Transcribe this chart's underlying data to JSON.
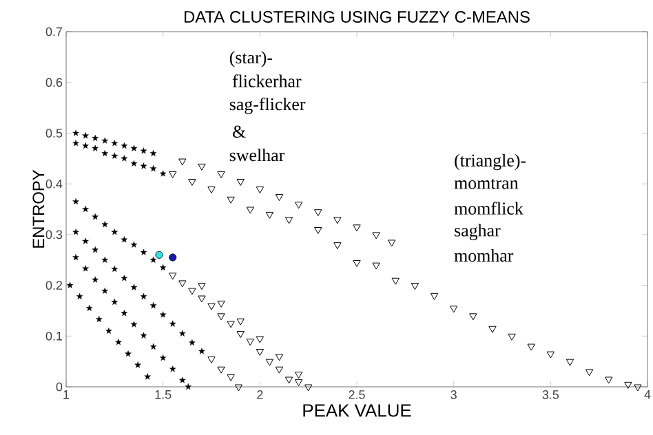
{
  "chart_data": {
    "type": "scatter",
    "title": "DATA CLUSTERING USING FUZZY C-MEANS",
    "xlabel": "PEAK VALUE",
    "ylabel": "ENTROPY",
    "xlim": [
      1,
      4
    ],
    "xticks": [
      1,
      1.5,
      2,
      2.5,
      3,
      3.5,
      4
    ],
    "ylim": [
      0,
      0.7
    ],
    "yticks": [
      0,
      0.1,
      0.2,
      0.3,
      0.4,
      0.5,
      0.6,
      0.7
    ],
    "grid": false,
    "annotations": [
      "(star)-",
      "flickerhar",
      "sag-flicker",
      "&",
      "swelhar",
      "(triangle)-",
      "momtran",
      "momflick",
      "saghar",
      "momhar"
    ],
    "series": [
      {
        "color": "#000000",
        "marker": "star",
        "x": [
          1.05,
          1.1,
          1.15,
          1.2,
          1.25,
          1.3,
          1.35,
          1.4,
          1.45,
          1.05,
          1.1,
          1.15,
          1.2,
          1.25,
          1.3,
          1.35,
          1.4,
          1.45,
          1.5,
          1.05,
          1.1,
          1.15,
          1.2,
          1.25,
          1.3,
          1.35,
          1.4,
          1.45,
          1.5,
          1.05,
          1.1,
          1.15,
          1.2,
          1.25,
          1.3,
          1.35,
          1.4,
          1.45,
          1.5,
          1.55,
          1.6,
          1.65,
          1.7,
          1.05,
          1.1,
          1.15,
          1.2,
          1.25,
          1.3,
          1.35,
          1.4,
          1.45,
          1.5,
          1.55,
          1.6,
          1.63,
          1.02,
          1.07,
          1.12,
          1.17,
          1.22,
          1.27,
          1.32,
          1.37,
          1.42
        ],
        "values": [
          0.5,
          0.495,
          0.49,
          0.485,
          0.48,
          0.475,
          0.47,
          0.465,
          0.46,
          0.48,
          0.475,
          0.47,
          0.46,
          0.455,
          0.45,
          0.44,
          0.435,
          0.43,
          0.42,
          0.365,
          0.35,
          0.335,
          0.32,
          0.305,
          0.29,
          0.28,
          0.265,
          0.25,
          0.235,
          0.305,
          0.287,
          0.27,
          0.25,
          0.232,
          0.214,
          0.196,
          0.178,
          0.16,
          0.142,
          0.124,
          0.105,
          0.087,
          0.07,
          0.255,
          0.233,
          0.211,
          0.189,
          0.167,
          0.145,
          0.123,
          0.101,
          0.079,
          0.057,
          0.035,
          0.013,
          0.0,
          0.2,
          0.178,
          0.155,
          0.133,
          0.11,
          0.088,
          0.065,
          0.043,
          0.02
        ]
      },
      {
        "color": "#000000",
        "marker": "triangle",
        "x": [
          1.55,
          1.6,
          1.65,
          1.7,
          1.75,
          1.8,
          1.85,
          1.9,
          1.95,
          2.0,
          2.05,
          2.1,
          2.15,
          2.2,
          2.25,
          1.7,
          1.8,
          1.9,
          2.0,
          2.1,
          2.2,
          1.75,
          1.8,
          1.85,
          1.89,
          1.6,
          1.7,
          1.8,
          1.9,
          2.0,
          2.1,
          2.2,
          2.3,
          2.4,
          2.5,
          2.6,
          2.68,
          1.55,
          1.65,
          1.75,
          1.85,
          1.95,
          2.05,
          2.15,
          2.3,
          2.4,
          2.5,
          2.6,
          2.7,
          2.8,
          2.9,
          3.0,
          3.1,
          3.2,
          3.3,
          3.4,
          3.5,
          3.6,
          3.7,
          3.8,
          3.9,
          3.95
        ],
        "values": [
          0.22,
          0.205,
          0.19,
          0.175,
          0.16,
          0.14,
          0.125,
          0.105,
          0.09,
          0.07,
          0.05,
          0.035,
          0.015,
          0.01,
          0.0,
          0.2,
          0.165,
          0.13,
          0.095,
          0.06,
          0.025,
          0.055,
          0.035,
          0.02,
          0.0,
          0.445,
          0.435,
          0.42,
          0.405,
          0.39,
          0.375,
          0.36,
          0.345,
          0.33,
          0.315,
          0.3,
          0.285,
          0.42,
          0.405,
          0.39,
          0.37,
          0.35,
          0.34,
          0.33,
          0.31,
          0.28,
          0.245,
          0.24,
          0.21,
          0.2,
          0.18,
          0.155,
          0.14,
          0.115,
          0.1,
          0.08,
          0.065,
          0.05,
          0.03,
          0.015,
          0.005,
          0.0
        ]
      },
      {
        "color": "#33e0e0",
        "marker": "circle",
        "x": [
          1.48
        ],
        "values": [
          0.26
        ]
      },
      {
        "color": "#1a1aa6",
        "marker": "circle",
        "x": [
          1.55
        ],
        "values": [
          0.255
        ]
      }
    ]
  }
}
